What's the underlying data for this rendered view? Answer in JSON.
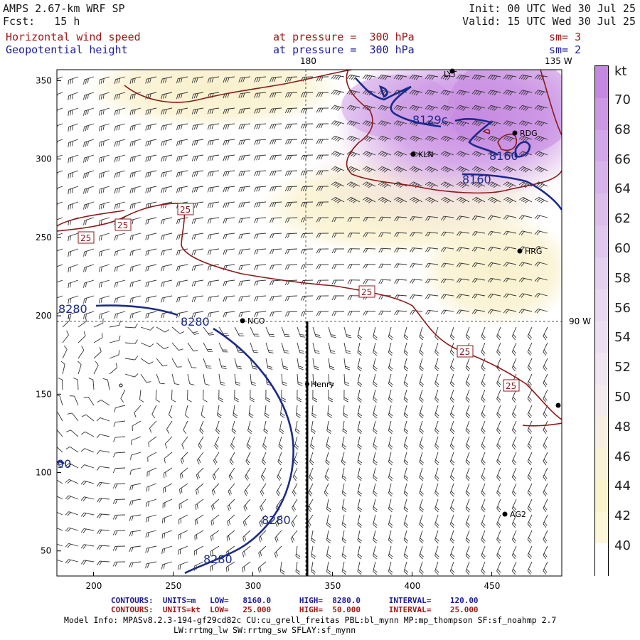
{
  "header": {
    "model": "AMPS 2.67-km WRF SP",
    "fcst": "Fcst:   15 h",
    "init": "Init: 00 UTC Wed 30 Jul 25",
    "valid": "Valid: 15 UTC Wed 30 Jul 25",
    "field1": "Horizontal wind speed",
    "field1_level": "at pressure =  300 hPa",
    "field1_sm": "sm= 3",
    "field2": "Geopotential height",
    "field2_level": "at pressure =  300 hPa",
    "field2_sm": "sm= 2"
  },
  "map": {
    "meridian_top": "180",
    "meridian_right_top": "135 W",
    "meridian_right": "90 W",
    "x_ticks": [
      "200",
      "250",
      "300",
      "350",
      "400",
      "450"
    ],
    "y_ticks": [
      "350",
      "300",
      "250",
      "200",
      "150",
      "100",
      "50"
    ],
    "stations": [
      {
        "name": "NCO"
      },
      {
        "name": "Henry"
      },
      {
        "name": "KLN"
      },
      {
        "name": "RDG"
      },
      {
        "name": "HRG"
      },
      {
        "name": "AG2"
      },
      {
        "name": "LYT"
      }
    ],
    "height_labels": [
      "8280",
      "8280",
      "8280",
      "8280",
      "8160",
      "8129c",
      "8160",
      "90"
    ],
    "speed_labels": [
      "25",
      "25",
      "25",
      "25",
      "25",
      "25"
    ]
  },
  "colorbar": {
    "unit": "kt",
    "labels": [
      "70",
      "68",
      "66",
      "64",
      "62",
      "60",
      "58",
      "56",
      "54",
      "52",
      "50",
      "48",
      "46",
      "44",
      "42",
      "40"
    ],
    "colors": [
      "#c488e0",
      "#cc98e4",
      "#d2a6e8",
      "#d8b2ea",
      "#dcbdec",
      "#e0c7ee",
      "#e4d0ef",
      "#e8d8f0",
      "#ecdff2",
      "#f0e6f2",
      "#f3ecef",
      "#f6efe2",
      "#f8f2d6",
      "#faf4cc",
      "#fcf7d8",
      "#ffffff"
    ]
  },
  "footer": {
    "contours1": "CONTOURS:  UNITS=m   LOW=   8160.0      HIGH=  8280.0      INTERVAL=    120.00",
    "contours2": "CONTOURS:  UNITS=kt  LOW=   25.000      HIGH=  50.000      INTERVAL=    25.000",
    "model_info1": "Model Info: MPASv8.2.3-194-gf29cd82c CU:cu_grell_freitas PBL:bl_mynn MP:mp_thompson SF:sf_noahmp 2.7",
    "model_info2": "LW:rrtmg_lw SW:rrtmg_sw SFLAY:sf_mynn"
  }
}
